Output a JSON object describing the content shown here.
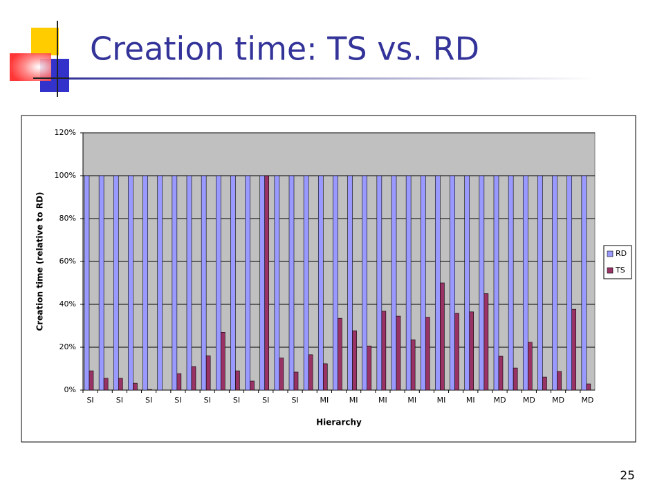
{
  "slide_title": "Creation time: TS vs. RD",
  "page_number": "25",
  "chart_data": {
    "type": "bar",
    "categories": [
      "SI",
      null,
      "SI",
      null,
      "SI",
      null,
      "SI",
      null,
      "SI",
      null,
      "SI",
      null,
      "SI",
      null,
      "SI",
      null,
      "MI",
      null,
      "MI",
      null,
      "MI",
      null,
      "MI",
      null,
      "MI",
      null,
      "MI",
      null,
      "MD",
      null,
      "MD",
      null,
      "MD",
      null,
      "MD"
    ],
    "series": [
      {
        "name": "RD",
        "color": "#9999ff",
        "values": [
          100,
          100,
          100,
          100,
          100,
          100,
          100,
          100,
          100,
          100,
          100,
          100,
          100,
          100,
          100,
          100,
          100,
          100,
          100,
          100,
          100,
          100,
          100,
          100,
          100,
          100,
          100,
          100,
          100,
          100,
          100,
          100,
          100,
          100,
          100
        ]
      },
      {
        "name": "TS",
        "color": "#993366",
        "values": [
          9,
          5.5,
          5.5,
          3.2,
          0.3,
          0,
          7.7,
          11,
          16,
          27,
          9,
          4.2,
          100,
          15,
          8.4,
          16.5,
          12.3,
          33.5,
          27.7,
          20.6,
          36.8,
          34.5,
          23.5,
          34,
          50,
          35.8,
          36.5,
          45,
          15.8,
          10.3,
          22.3,
          6.1,
          8.7,
          37.7,
          2.9
        ]
      }
    ],
    "xlabel": "Hierarchy",
    "ylabel": "Creation time (relative to RD)",
    "ylim": [
      0,
      120
    ],
    "yticks": [
      {
        "value": 0,
        "label": "0%"
      },
      {
        "value": 20,
        "label": "20%"
      },
      {
        "value": 40,
        "label": "40%"
      },
      {
        "value": 60,
        "label": "60%"
      },
      {
        "value": 80,
        "label": "80%"
      },
      {
        "value": 100,
        "label": "100%"
      },
      {
        "value": 120,
        "label": "120%"
      }
    ],
    "grid": true,
    "legend": "right"
  }
}
